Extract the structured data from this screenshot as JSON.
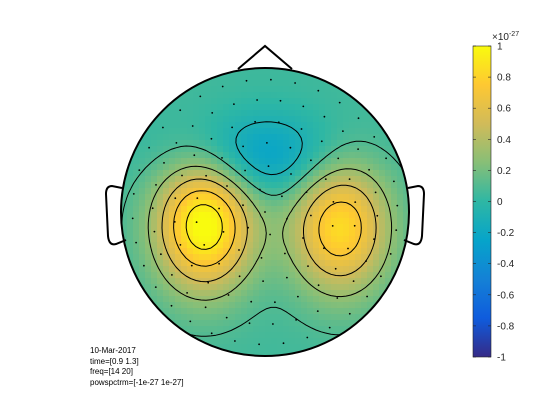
{
  "chart_data": {
    "type": "heatmap",
    "subtype": "EEG scalp topographic map",
    "title": "",
    "colormap": "parula",
    "colorbar": {
      "position": "right",
      "exponent_label": "×10",
      "exponent_value": "-27",
      "ticks": [
        "1",
        "0.8",
        "0.6",
        "0.4",
        "0.2",
        "0",
        "-0.2",
        "-0.4",
        "-0.6",
        "-0.8",
        "-1"
      ],
      "range": [
        -1,
        1
      ]
    },
    "value_scale": "1e-27",
    "sources": [
      {
        "name": "left-central",
        "rel_x": -0.42,
        "rel_y": 0.08,
        "amplitude": 1.0
      },
      {
        "name": "right-central",
        "rel_x": 0.52,
        "rel_y": 0.1,
        "amplitude": 0.8
      },
      {
        "name": "frontal-midline",
        "rel_x": -0.05,
        "rel_y": -0.38,
        "amplitude": -0.35
      }
    ],
    "contour_levels": [
      -0.1,
      0.1,
      0.3,
      0.5,
      0.7,
      0.9
    ],
    "electrodes": "dots across scalp",
    "grid": false
  },
  "info": {
    "date": "10-Mar-2017",
    "time": "time=[0.9 1.3]",
    "freq": "freq=[14 20]",
    "powspctrm": "powspctrm=[-1e-27 1e-27]"
  }
}
